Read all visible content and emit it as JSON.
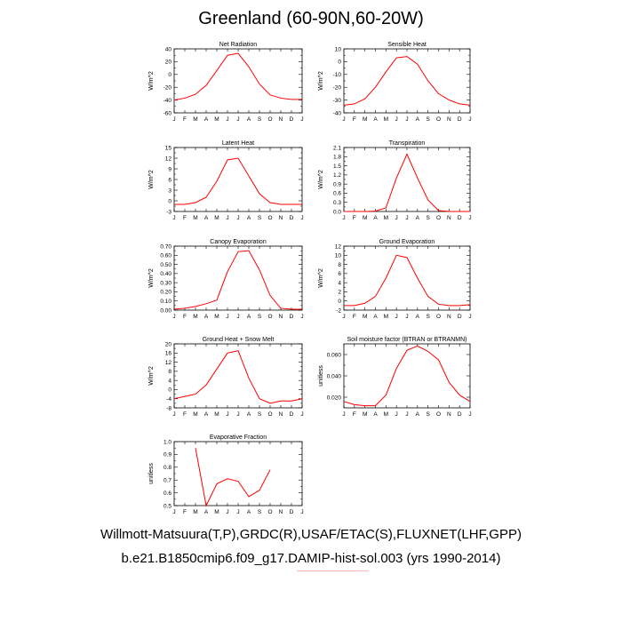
{
  "title": "Greenland (60-90N,60-20W)",
  "footer": {
    "line1": "Willmott-Matsuura(T,P),GRDC(R),USAF/ETAC(S),FLUXNET(LHF,GPP)",
    "line2": "b.e21.B1850cmip6.f09_g17.DAMIP-hist-sol.003 (yrs 1990-2014)"
  },
  "colors": {
    "line": "#ff0000",
    "axis": "#000000"
  },
  "chart_data": [
    {
      "type": "line",
      "title": "Net Radiation",
      "ylabel": "W/m^2",
      "ylim": [
        -60,
        40
      ],
      "yticks": [
        40,
        20,
        0,
        -20,
        -40,
        -60
      ],
      "categories": [
        "J",
        "F",
        "M",
        "A",
        "M",
        "J",
        "J",
        "A",
        "S",
        "O",
        "N",
        "D",
        "J"
      ],
      "values": [
        -40,
        -37,
        -31,
        -17,
        6,
        30,
        33,
        12,
        -15,
        -32,
        -37,
        -39,
        -39
      ]
    },
    {
      "type": "line",
      "title": "Sensible Heat",
      "ylabel": "W/m^2",
      "ylim": [
        -40,
        10
      ],
      "yticks": [
        10,
        0,
        -10,
        -20,
        -30,
        -40
      ],
      "categories": [
        "J",
        "F",
        "M",
        "A",
        "M",
        "J",
        "J",
        "A",
        "S",
        "O",
        "N",
        "D",
        "J"
      ],
      "values": [
        -34,
        -33,
        -29,
        -20,
        -8,
        3,
        4,
        -2,
        -15,
        -25,
        -30,
        -33,
        -34
      ]
    },
    {
      "type": "line",
      "title": "Latent Heat",
      "ylabel": "W/m^2",
      "ylim": [
        -3,
        15
      ],
      "yticks": [
        15,
        12,
        9,
        6,
        3,
        0,
        -3
      ],
      "categories": [
        "J",
        "F",
        "M",
        "A",
        "M",
        "J",
        "J",
        "A",
        "S",
        "O",
        "N",
        "D",
        "J"
      ],
      "values": [
        -1,
        -1,
        -0.5,
        1,
        5.5,
        11.5,
        12,
        7,
        2,
        -0.5,
        -1,
        -1,
        -1
      ]
    },
    {
      "type": "line",
      "title": "Transpiration",
      "ylabel": "W/m^2",
      "ylim": [
        0,
        2.1
      ],
      "yticks": [
        "2.1",
        "1.8",
        "1.5",
        "1.2",
        "0.9",
        "0.6",
        "0.3",
        "0.0"
      ],
      "categories": [
        "J",
        "F",
        "M",
        "A",
        "M",
        "J",
        "J",
        "A",
        "S",
        "O",
        "N",
        "D",
        "J"
      ],
      "values": [
        0,
        0,
        0,
        0.01,
        0.12,
        1.1,
        1.88,
        1.1,
        0.38,
        0.03,
        0,
        0,
        0
      ]
    },
    {
      "type": "line",
      "title": "Canopy Evaporation",
      "ylabel": "W/m^2",
      "ylim": [
        0,
        0.7
      ],
      "yticks": [
        "0.70",
        "0.60",
        "0.50",
        "0.40",
        "0.30",
        "0.20",
        "0.10",
        "0.00"
      ],
      "categories": [
        "J",
        "F",
        "M",
        "A",
        "M",
        "J",
        "J",
        "A",
        "S",
        "O",
        "N",
        "D",
        "J"
      ],
      "values": [
        0.01,
        0.02,
        0.04,
        0.07,
        0.11,
        0.42,
        0.64,
        0.65,
        0.44,
        0.16,
        0.02,
        0.01,
        0.01
      ]
    },
    {
      "type": "line",
      "title": "Ground Evaporation",
      "ylabel": "W/m^2",
      "ylim": [
        -2,
        12
      ],
      "yticks": [
        12,
        10,
        8,
        6,
        4,
        2,
        0,
        -2
      ],
      "categories": [
        "J",
        "F",
        "M",
        "A",
        "M",
        "J",
        "J",
        "A",
        "S",
        "O",
        "N",
        "D",
        "J"
      ],
      "values": [
        -1,
        -1,
        -0.5,
        1,
        5,
        10,
        9.5,
        5,
        1,
        -0.7,
        -1,
        -1,
        -0.8
      ]
    },
    {
      "type": "line",
      "title": "Ground Heat + Snow Melt",
      "ylabel": "W/m^2",
      "ylim": [
        -8,
        20
      ],
      "yticks": [
        20,
        16,
        12,
        8,
        4,
        0,
        -4,
        -8
      ],
      "categories": [
        "J",
        "F",
        "M",
        "A",
        "M",
        "J",
        "J",
        "A",
        "S",
        "O",
        "N",
        "D",
        "J"
      ],
      "values": [
        -4,
        -3,
        -2,
        2,
        9,
        16,
        17,
        5,
        -4,
        -6,
        -5,
        -5,
        -4
      ]
    },
    {
      "type": "line",
      "title": "Soil moisture factor (BTRAN or BTRANMN)",
      "ylabel": "unitless",
      "ylim": [
        0.01,
        0.07
      ],
      "yticks": [
        "0.060",
        "0.040",
        "0.020"
      ],
      "ytick_values": [
        0.06,
        0.04,
        0.02
      ],
      "categories": [
        "J",
        "F",
        "M",
        "A",
        "M",
        "J",
        "J",
        "A",
        "S",
        "O",
        "N",
        "D",
        "J"
      ],
      "values": [
        0.016,
        0.013,
        0.012,
        0.012,
        0.022,
        0.047,
        0.064,
        0.068,
        0.063,
        0.055,
        0.034,
        0.022,
        0.016
      ]
    },
    {
      "type": "line",
      "title": "Evaporative Fraction",
      "ylabel": "unitless",
      "ylim": [
        0.5,
        1.0
      ],
      "yticks": [
        "1.0",
        "0.9",
        "0.8",
        "0.7",
        "0.6",
        "0.5"
      ],
      "categories": [
        "J",
        "F",
        "M",
        "A",
        "M",
        "J",
        "J",
        "A",
        "S",
        "O",
        "N",
        "D",
        "J"
      ],
      "values": [
        null,
        null,
        0.95,
        0.5,
        0.67,
        0.71,
        0.69,
        0.57,
        0.62,
        0.78,
        null,
        null,
        null
      ]
    }
  ]
}
